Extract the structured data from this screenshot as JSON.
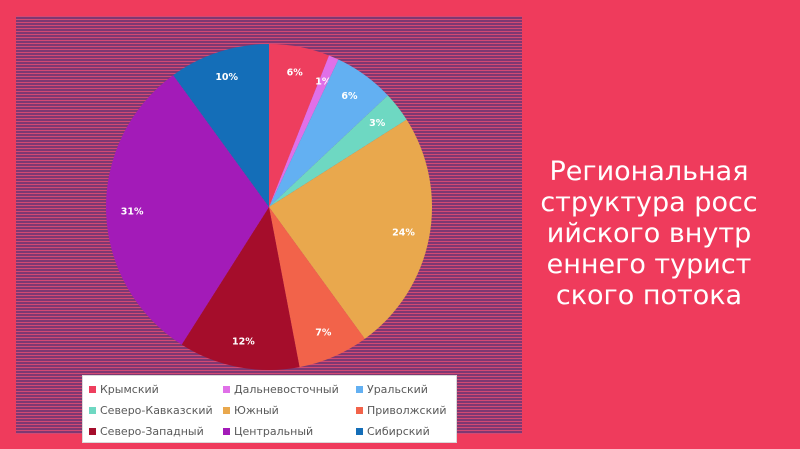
{
  "slide": {
    "title": "Региональная структура российского внутреннего туристского потока",
    "background_color": "#ef3b5c"
  },
  "chart_data": {
    "type": "pie",
    "categories": [
      "Крымский",
      "Дальневосточный",
      "Уральский",
      "Северо-Кавказский",
      "Южный",
      "Приволжский",
      "Северо-Западный",
      "Центральный",
      "Сибирский"
    ],
    "values": [
      6,
      1,
      6,
      3,
      24,
      7,
      12,
      31,
      10
    ],
    "labels": [
      "6%",
      "1%",
      "6%",
      "3%",
      "24%",
      "7%",
      "12%",
      "31%",
      "10%"
    ],
    "colors": [
      "#ee3e5e",
      "#e070e8",
      "#63b0f2",
      "#6ed8c2",
      "#e9a84d",
      "#f2634a",
      "#a50d2b",
      "#a31bb8",
      "#146eb8"
    ],
    "legend_position": "bottom"
  }
}
